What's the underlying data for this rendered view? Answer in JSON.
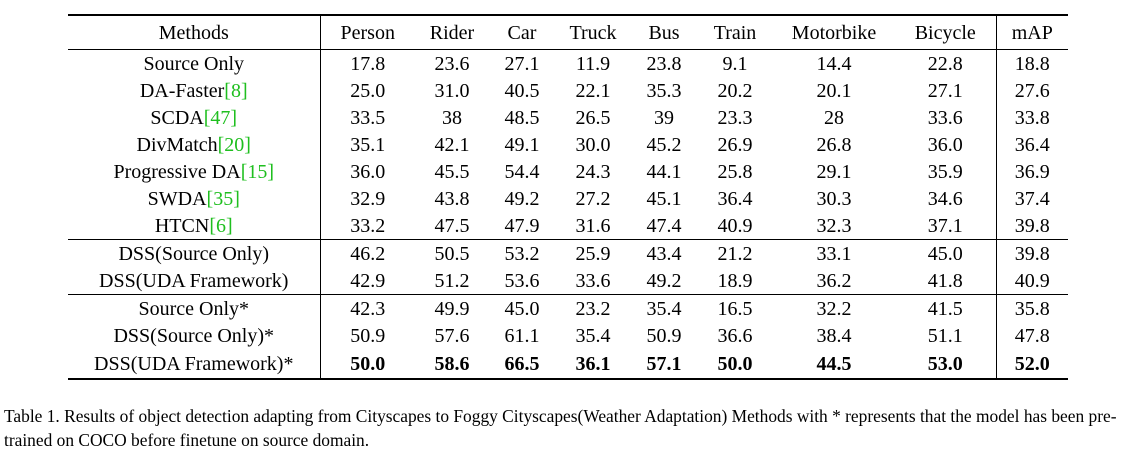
{
  "table": {
    "headers": [
      "Methods",
      "Person",
      "Rider",
      "Car",
      "Truck",
      "Bus",
      "Train",
      "Motorbike",
      "Bicycle",
      "mAP"
    ],
    "rows": [
      {
        "method": "Source Only",
        "ref": "",
        "values": [
          "17.8",
          "23.6",
          "27.1",
          "11.9",
          "23.8",
          "9.1",
          "14.4",
          "22.8",
          "18.8"
        ]
      },
      {
        "method": "DA-Faster",
        "ref": "[8]",
        "values": [
          "25.0",
          "31.0",
          "40.5",
          "22.1",
          "35.3",
          "20.2",
          "20.1",
          "27.1",
          "27.6"
        ]
      },
      {
        "method": "SCDA",
        "ref": "[47]",
        "values": [
          "33.5",
          "38",
          "48.5",
          "26.5",
          "39",
          "23.3",
          "28",
          "33.6",
          "33.8"
        ]
      },
      {
        "method": "DivMatch",
        "ref": "[20]",
        "values": [
          "35.1",
          "42.1",
          "49.1",
          "30.0",
          "45.2",
          "26.9",
          "26.8",
          "36.0",
          "36.4"
        ]
      },
      {
        "method": "Progressive DA",
        "ref": "[15]",
        "values": [
          "36.0",
          "45.5",
          "54.4",
          "24.3",
          "44.1",
          "25.8",
          "29.1",
          "35.9",
          "36.9"
        ]
      },
      {
        "method": "SWDA",
        "ref": "[35]",
        "values": [
          "32.9",
          "43.8",
          "49.2",
          "27.2",
          "45.1",
          "36.4",
          "30.3",
          "34.6",
          "37.4"
        ]
      },
      {
        "method": "HTCN",
        "ref": "[6]",
        "values": [
          "33.2",
          "47.5",
          "47.9",
          "31.6",
          "47.4",
          "40.9",
          "32.3",
          "37.1",
          "39.8"
        ]
      },
      {
        "method": "DSS(Source Only)",
        "ref": "",
        "values": [
          "46.2",
          "50.5",
          "53.2",
          "25.9",
          "43.4",
          "21.2",
          "33.1",
          "45.0",
          "39.8"
        ]
      },
      {
        "method": "DSS(UDA Framework)",
        "ref": "",
        "values": [
          "42.9",
          "51.2",
          "53.6",
          "33.6",
          "49.2",
          "18.9",
          "36.2",
          "41.8",
          "40.9"
        ]
      },
      {
        "method": "Source Only*",
        "ref": "",
        "values": [
          "42.3",
          "49.9",
          "45.0",
          "23.2",
          "35.4",
          "16.5",
          "32.2",
          "41.5",
          "35.8"
        ]
      },
      {
        "method": "DSS(Source Only)*",
        "ref": "",
        "values": [
          "50.9",
          "57.6",
          "61.1",
          "35.4",
          "50.9",
          "36.6",
          "38.4",
          "51.1",
          "47.8"
        ]
      },
      {
        "method": "DSS(UDA Framework)*",
        "ref": "",
        "values": [
          "50.0",
          "58.6",
          "66.5",
          "36.1",
          "57.1",
          "50.0",
          "44.5",
          "53.0",
          "52.0"
        ]
      }
    ]
  },
  "caption": "Table 1. Results of object detection adapting from Cityscapes to Foggy Cityscapes(Weather Adaptation) Methods with * represents that the model has been pre-trained on COCO before finetune on source domain."
}
